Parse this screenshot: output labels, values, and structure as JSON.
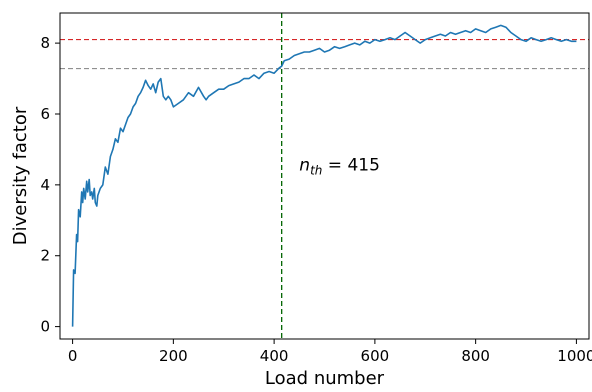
{
  "chart_data": {
    "type": "line",
    "title": "",
    "xlabel": "Load number",
    "ylabel": "Diversity factor",
    "xlim": [
      -25,
      1025
    ],
    "ylim": [
      -0.35,
      8.85
    ],
    "xticks": [
      0,
      200,
      400,
      600,
      800,
      1000
    ],
    "yticks": [
      0,
      2,
      4,
      6,
      8
    ],
    "grid": false,
    "legend": "none",
    "series": [
      {
        "color": "#1f77b4",
        "x": [
          0,
          2,
          5,
          8,
          10,
          12,
          15,
          18,
          20,
          22,
          25,
          28,
          30,
          33,
          35,
          38,
          40,
          43,
          45,
          48,
          50,
          55,
          60,
          65,
          70,
          75,
          80,
          85,
          90,
          95,
          100,
          105,
          110,
          115,
          120,
          125,
          130,
          135,
          140,
          145,
          150,
          155,
          160,
          165,
          170,
          175,
          180,
          185,
          190,
          195,
          200,
          210,
          220,
          230,
          240,
          250,
          260,
          265,
          270,
          280,
          290,
          300,
          310,
          320,
          330,
          340,
          350,
          360,
          370,
          380,
          390,
          400,
          410,
          415,
          420,
          430,
          440,
          450,
          460,
          470,
          480,
          490,
          500,
          510,
          520,
          530,
          540,
          550,
          560,
          570,
          580,
          590,
          600,
          610,
          620,
          630,
          640,
          650,
          660,
          670,
          680,
          690,
          700,
          710,
          720,
          730,
          740,
          750,
          760,
          770,
          780,
          790,
          800,
          810,
          820,
          830,
          840,
          850,
          860,
          870,
          880,
          890,
          900,
          910,
          920,
          930,
          940,
          950,
          960,
          970,
          980,
          990,
          1000
        ],
        "y": [
          0.0,
          1.6,
          1.5,
          2.6,
          2.4,
          3.3,
          3.1,
          3.8,
          3.5,
          3.9,
          3.6,
          4.1,
          3.8,
          4.15,
          3.7,
          3.8,
          3.6,
          3.9,
          3.5,
          3.4,
          3.7,
          3.9,
          4.0,
          4.5,
          4.3,
          4.8,
          5.0,
          5.3,
          5.2,
          5.6,
          5.5,
          5.7,
          5.9,
          6.0,
          6.2,
          6.3,
          6.5,
          6.6,
          6.75,
          6.95,
          6.8,
          6.7,
          6.85,
          6.6,
          6.9,
          7.0,
          6.5,
          6.4,
          6.5,
          6.4,
          6.2,
          6.3,
          6.4,
          6.6,
          6.5,
          6.75,
          6.5,
          6.4,
          6.5,
          6.6,
          6.7,
          6.7,
          6.8,
          6.85,
          6.9,
          7.0,
          7.0,
          7.1,
          7.0,
          7.15,
          7.2,
          7.15,
          7.3,
          7.35,
          7.5,
          7.55,
          7.65,
          7.7,
          7.75,
          7.75,
          7.8,
          7.85,
          7.75,
          7.8,
          7.9,
          7.85,
          7.9,
          7.95,
          8.0,
          7.95,
          8.05,
          8.0,
          8.1,
          8.05,
          8.1,
          8.15,
          8.1,
          8.2,
          8.3,
          8.2,
          8.1,
          8.0,
          8.1,
          8.15,
          8.2,
          8.25,
          8.2,
          8.3,
          8.25,
          8.3,
          8.35,
          8.3,
          8.4,
          8.35,
          8.3,
          8.4,
          8.45,
          8.5,
          8.45,
          8.3,
          8.2,
          8.1,
          8.05,
          8.15,
          8.1,
          8.05,
          8.1,
          8.15,
          8.1,
          8.05,
          8.1,
          8.05,
          8.05
        ]
      }
    ],
    "reference_lines": {
      "horizontal": [
        {
          "y": 8.1,
          "color": "#d62728",
          "style": "dashed"
        },
        {
          "y": 7.28,
          "color": "#808080",
          "style": "dashed"
        }
      ],
      "vertical": [
        {
          "x": 415,
          "color": "#006400",
          "style": "dashed"
        }
      ]
    },
    "annotation": {
      "prefix": "n",
      "subscript": "th",
      "text": " = 415",
      "x": 450,
      "y": 4.4
    }
  }
}
